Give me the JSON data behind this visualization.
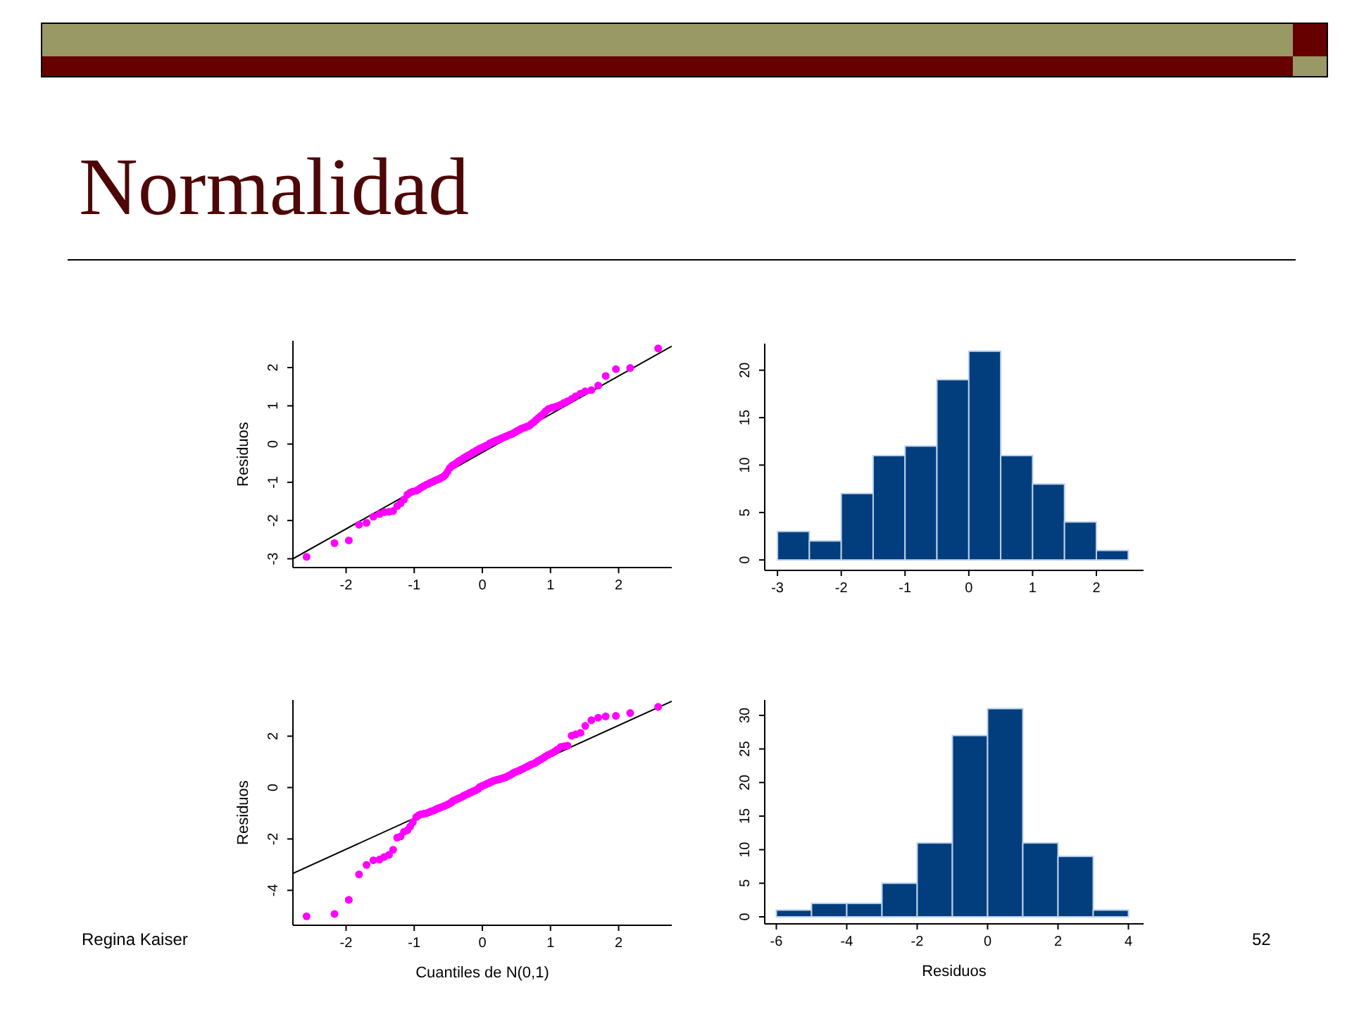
{
  "chart_data": [
    {
      "type": "scatter",
      "title": "Normalidad",
      "ylabel": "Residuos",
      "xlim": [
        -2.78,
        2.78
      ],
      "xticks": [
        -2,
        -1,
        0,
        1,
        2
      ],
      "ylim": [
        -3.23,
        2.7
      ],
      "yticks": [
        -3,
        -2,
        -1,
        0,
        1,
        2
      ],
      "marker": "circle",
      "series": [
        {
          "type": "scatter",
          "color": "#ff00ff",
          "x": [
            -2.58,
            -2.17,
            -1.96,
            -1.81,
            -1.7,
            -1.6,
            -1.51,
            -1.44,
            -1.37,
            -1.31,
            -1.25,
            -1.2,
            -1.15,
            -1.1,
            -1.06,
            -1.02,
            -0.97,
            -0.93,
            -0.9,
            -0.86,
            -0.82,
            -0.79,
            -0.76,
            -0.72,
            -0.69,
            -0.66,
            -0.63,
            -0.6,
            -0.57,
            -0.54,
            -0.51,
            -0.48,
            -0.45,
            -0.43,
            -0.4,
            -0.37,
            -0.35,
            -0.32,
            -0.29,
            -0.27,
            -0.24,
            -0.21,
            -0.19,
            -0.16,
            -0.14,
            -0.11,
            -0.09,
            -0.06,
            -0.04,
            -0.01,
            0.01,
            0.04,
            0.06,
            0.09,
            0.11,
            0.14,
            0.16,
            0.19,
            0.21,
            0.24,
            0.27,
            0.29,
            0.32,
            0.35,
            0.37,
            0.4,
            0.43,
            0.45,
            0.48,
            0.51,
            0.54,
            0.57,
            0.6,
            0.63,
            0.66,
            0.69,
            0.72,
            0.76,
            0.79,
            0.82,
            0.86,
            0.9,
            0.93,
            0.97,
            1.02,
            1.06,
            1.1,
            1.15,
            1.2,
            1.25,
            1.31,
            1.37,
            1.44,
            1.51,
            1.6,
            1.7,
            1.81,
            1.96,
            2.17,
            2.58
          ],
          "values": [
            -2.95,
            -2.59,
            -2.52,
            -2.11,
            -2.06,
            -1.9,
            -1.83,
            -1.78,
            -1.77,
            -1.75,
            -1.62,
            -1.55,
            -1.45,
            -1.32,
            -1.27,
            -1.24,
            -1.22,
            -1.18,
            -1.14,
            -1.1,
            -1.06,
            -1.04,
            -1.01,
            -0.98,
            -0.95,
            -0.93,
            -0.91,
            -0.88,
            -0.85,
            -0.8,
            -0.72,
            -0.63,
            -0.58,
            -0.55,
            -0.52,
            -0.48,
            -0.45,
            -0.42,
            -0.39,
            -0.36,
            -0.33,
            -0.3,
            -0.28,
            -0.25,
            -0.22,
            -0.2,
            -0.17,
            -0.15,
            -0.12,
            -0.1,
            -0.08,
            -0.06,
            -0.04,
            -0.02,
            0.02,
            0.04,
            0.06,
            0.08,
            0.1,
            0.12,
            0.14,
            0.16,
            0.18,
            0.2,
            0.22,
            0.24,
            0.26,
            0.28,
            0.31,
            0.34,
            0.37,
            0.4,
            0.42,
            0.44,
            0.46,
            0.48,
            0.53,
            0.58,
            0.63,
            0.68,
            0.74,
            0.8,
            0.86,
            0.92,
            0.95,
            0.97,
            0.99,
            1.03,
            1.08,
            1.12,
            1.18,
            1.25,
            1.32,
            1.38,
            1.41,
            1.53,
            1.78,
            1.96,
            1.99,
            2.5
          ]
        },
        {
          "type": "line",
          "color": "#000000",
          "marker": "none",
          "x": [
            -2.78,
            2.78
          ],
          "values": [
            -3.0,
            2.56
          ]
        }
      ]
    },
    {
      "type": "histogram",
      "bins": [
        -3,
        -2.5,
        -2,
        -1.5,
        -1,
        -0.5,
        0,
        0.5,
        1,
        1.5,
        2,
        2.5
      ],
      "values": [
        3,
        2,
        7,
        11,
        12,
        19,
        22,
        11,
        8,
        4,
        1
      ],
      "color": "#023e7d",
      "xlim": [
        -3.2,
        2.74
      ],
      "xticks": [
        -3,
        -2,
        -1,
        0,
        1,
        2
      ],
      "ylim": [
        -1.1,
        22.8
      ],
      "yticks": [
        0,
        5,
        10,
        15,
        20
      ]
    },
    {
      "type": "scatter",
      "xlabel": "Cuantiles de N(0,1)",
      "ylabel": "Residuos",
      "xlim": [
        -2.78,
        2.78
      ],
      "xticks": [
        -2,
        -1,
        0,
        1,
        2
      ],
      "ylim": [
        -5.36,
        3.41
      ],
      "yticks": [
        -4,
        -2,
        0,
        2
      ],
      "marker": "circle",
      "annotations": [
        "Regina Kaiser"
      ],
      "series": [
        {
          "type": "scatter",
          "color": "#ff00ff",
          "x": [
            -2.58,
            -2.17,
            -1.96,
            -1.81,
            -1.7,
            -1.6,
            -1.51,
            -1.44,
            -1.37,
            -1.31,
            -1.25,
            -1.2,
            -1.15,
            -1.1,
            -1.06,
            -1.02,
            -0.97,
            -0.93,
            -0.9,
            -0.86,
            -0.82,
            -0.79,
            -0.76,
            -0.72,
            -0.69,
            -0.66,
            -0.63,
            -0.6,
            -0.57,
            -0.54,
            -0.51,
            -0.48,
            -0.45,
            -0.43,
            -0.4,
            -0.37,
            -0.35,
            -0.32,
            -0.29,
            -0.27,
            -0.24,
            -0.21,
            -0.19,
            -0.16,
            -0.14,
            -0.11,
            -0.09,
            -0.06,
            -0.04,
            -0.01,
            0.01,
            0.04,
            0.06,
            0.09,
            0.11,
            0.14,
            0.16,
            0.19,
            0.21,
            0.24,
            0.27,
            0.29,
            0.32,
            0.35,
            0.37,
            0.4,
            0.43,
            0.45,
            0.48,
            0.51,
            0.54,
            0.57,
            0.6,
            0.63,
            0.66,
            0.69,
            0.72,
            0.76,
            0.79,
            0.82,
            0.86,
            0.9,
            0.93,
            0.97,
            1.02,
            1.06,
            1.1,
            1.15,
            1.2,
            1.25,
            1.31,
            1.37,
            1.44,
            1.51,
            1.6,
            1.7,
            1.81,
            1.96,
            2.17,
            2.58
          ],
          "values": [
            -5.01,
            -4.92,
            -4.37,
            -3.38,
            -3.01,
            -2.83,
            -2.8,
            -2.7,
            -2.62,
            -2.42,
            -1.95,
            -1.9,
            -1.72,
            -1.66,
            -1.52,
            -1.35,
            -1.15,
            -1.07,
            -1.04,
            -1.02,
            -1.0,
            -0.97,
            -0.93,
            -0.9,
            -0.86,
            -0.82,
            -0.79,
            -0.76,
            -0.73,
            -0.7,
            -0.66,
            -0.62,
            -0.57,
            -0.52,
            -0.48,
            -0.45,
            -0.42,
            -0.39,
            -0.35,
            -0.31,
            -0.28,
            -0.25,
            -0.21,
            -0.18,
            -0.15,
            -0.12,
            -0.09,
            -0.05,
            0.02,
            0.05,
            0.08,
            0.11,
            0.14,
            0.17,
            0.2,
            0.23,
            0.26,
            0.28,
            0.3,
            0.32,
            0.34,
            0.36,
            0.38,
            0.41,
            0.44,
            0.48,
            0.52,
            0.56,
            0.6,
            0.63,
            0.66,
            0.7,
            0.74,
            0.78,
            0.82,
            0.86,
            0.9,
            0.94,
            0.98,
            1.04,
            1.1,
            1.16,
            1.22,
            1.28,
            1.34,
            1.4,
            1.48,
            1.58,
            1.61,
            1.63,
            2.02,
            2.07,
            2.13,
            2.4,
            2.62,
            2.72,
            2.77,
            2.79,
            2.9,
            3.14
          ]
        },
        {
          "type": "line",
          "color": "#000000",
          "marker": "none",
          "x": [
            -2.78,
            2.78
          ],
          "values": [
            -3.34,
            3.36
          ]
        }
      ]
    },
    {
      "type": "histogram",
      "xlabel": "Residuos",
      "bins": [
        -6,
        -5,
        -4,
        -3,
        -2,
        -1,
        0,
        1,
        2,
        3,
        4
      ],
      "values": [
        1,
        2,
        2,
        5,
        11,
        27,
        31,
        11,
        9,
        1
      ],
      "color": "#023e7d",
      "xlim": [
        -6.33,
        4.43
      ],
      "xticks": [
        -6,
        -4,
        -2,
        0,
        2,
        4
      ],
      "ylim": [
        -1.05,
        32.3
      ],
      "yticks": [
        0,
        5,
        10,
        15,
        20,
        25,
        30
      ],
      "annotations": [
        "52"
      ]
    }
  ]
}
